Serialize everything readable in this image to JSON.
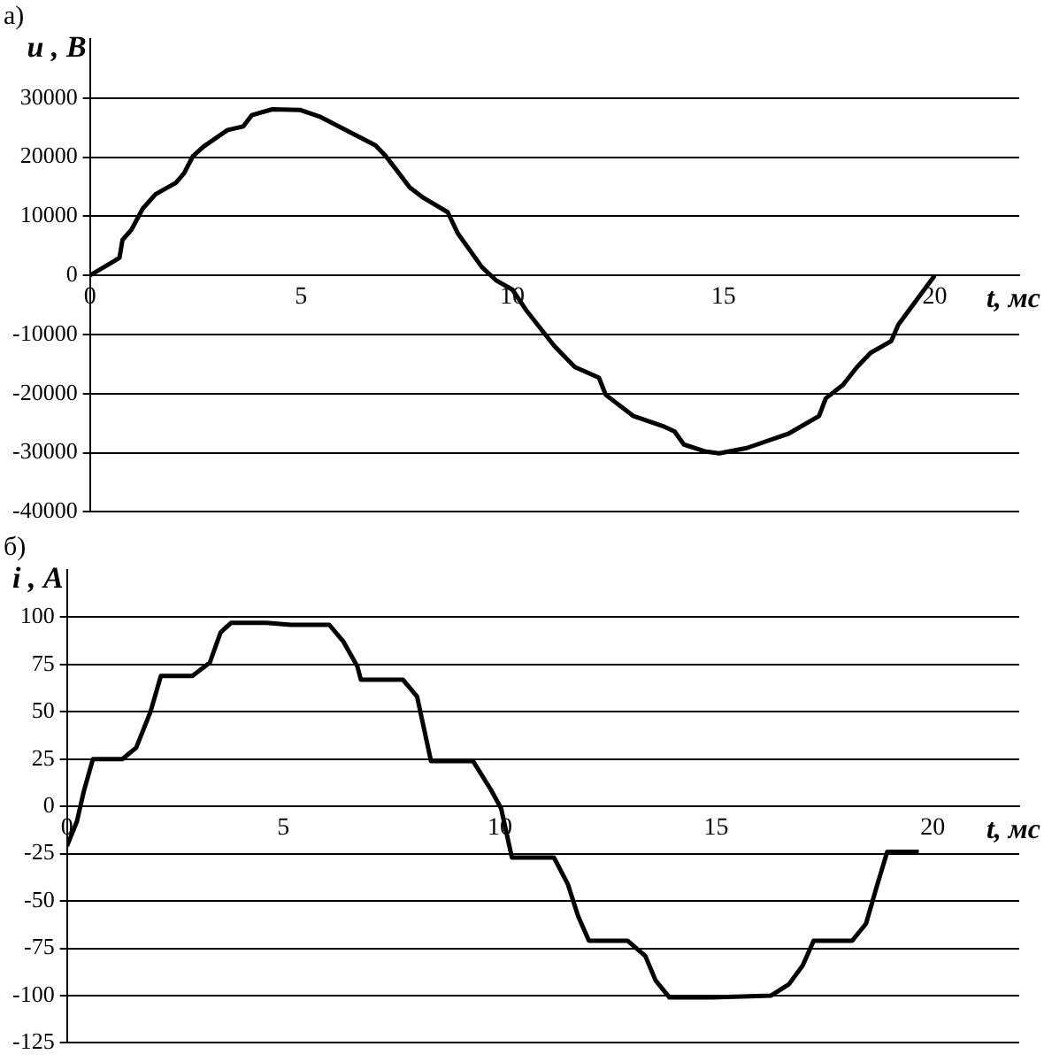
{
  "chart_data": [
    {
      "type": "line",
      "title": "а)",
      "ylabel": "u , В",
      "xlabel": "t, мс",
      "color": "#000000",
      "grid": "y",
      "xlim": [
        0,
        22
      ],
      "xticks": [
        0,
        5,
        10,
        15,
        20
      ],
      "ylim": [
        -40000,
        40000
      ],
      "yticks": [
        -40000,
        -30000,
        -20000,
        -10000,
        0,
        10000,
        20000,
        30000
      ],
      "x": [
        0,
        0.57,
        0.7,
        0.77,
        0.98,
        1.25,
        1.55,
        2.04,
        2.23,
        2.44,
        2.69,
        3.26,
        3.63,
        3.83,
        4.32,
        4.97,
        5.46,
        6.11,
        6.76,
        7.0,
        7.25,
        7.57,
        7.9,
        8.47,
        8.71,
        9.28,
        9.61,
        10.0,
        10.34,
        10.99,
        11.48,
        12.05,
        12.21,
        12.87,
        13.6,
        13.84,
        14.06,
        14.58,
        14.9,
        15.55,
        16.53,
        17.26,
        17.42,
        17.83,
        18.16,
        18.48,
        18.97,
        19.14,
        20.0
      ],
      "values": [
        0,
        2400,
        3000,
        6000,
        7700,
        11300,
        13700,
        15700,
        17300,
        20200,
        21800,
        24600,
        25200,
        27100,
        28100,
        28000,
        26800,
        24400,
        22000,
        20200,
        17900,
        14900,
        13100,
        10700,
        7100,
        1400,
        -800,
        -2400,
        -6000,
        -11900,
        -15500,
        -17300,
        -20200,
        -23800,
        -25600,
        -26400,
        -28600,
        -29800,
        -30100,
        -29200,
        -26800,
        -23800,
        -20800,
        -18500,
        -15500,
        -13100,
        -11100,
        -8300,
        0
      ]
    },
    {
      "type": "line",
      "title": "б)",
      "ylabel": "i , А",
      "xlabel": "t, мс",
      "color": "#000000",
      "grid": "y",
      "xlim": [
        0,
        22
      ],
      "xticks": [
        0,
        5,
        10,
        15,
        20
      ],
      "ylim": [
        -125,
        125
      ],
      "yticks": [
        -125,
        -100,
        -75,
        -50,
        -25,
        0,
        25,
        50,
        75,
        100
      ],
      "x": [
        0,
        0.23,
        0.39,
        0.6,
        1.28,
        1.6,
        1.93,
        2.17,
        2.9,
        3.3,
        3.55,
        3.79,
        4.6,
        5.17,
        6.06,
        6.39,
        6.71,
        6.79,
        7.76,
        8.09,
        8.41,
        9.38,
        9.79,
        10.03,
        10.28,
        11.25,
        11.57,
        11.81,
        12.06,
        12.95,
        13.36,
        13.6,
        13.92,
        14.9,
        16.27,
        16.68,
        17.0,
        17.25,
        18.14,
        18.46,
        18.7,
        18.95,
        19.68
      ],
      "values": [
        -21,
        -8,
        8,
        25,
        25,
        31,
        50,
        69,
        69,
        76,
        92,
        97,
        97,
        96,
        96,
        87,
        74,
        67,
        67,
        58,
        24,
        24,
        9,
        -1,
        -27,
        -27,
        -41,
        -58,
        -71,
        -71,
        -79,
        -92,
        -101,
        -101,
        -100,
        -94,
        -84,
        -71,
        -71,
        -62,
        -43,
        -24,
        -24
      ]
    }
  ]
}
